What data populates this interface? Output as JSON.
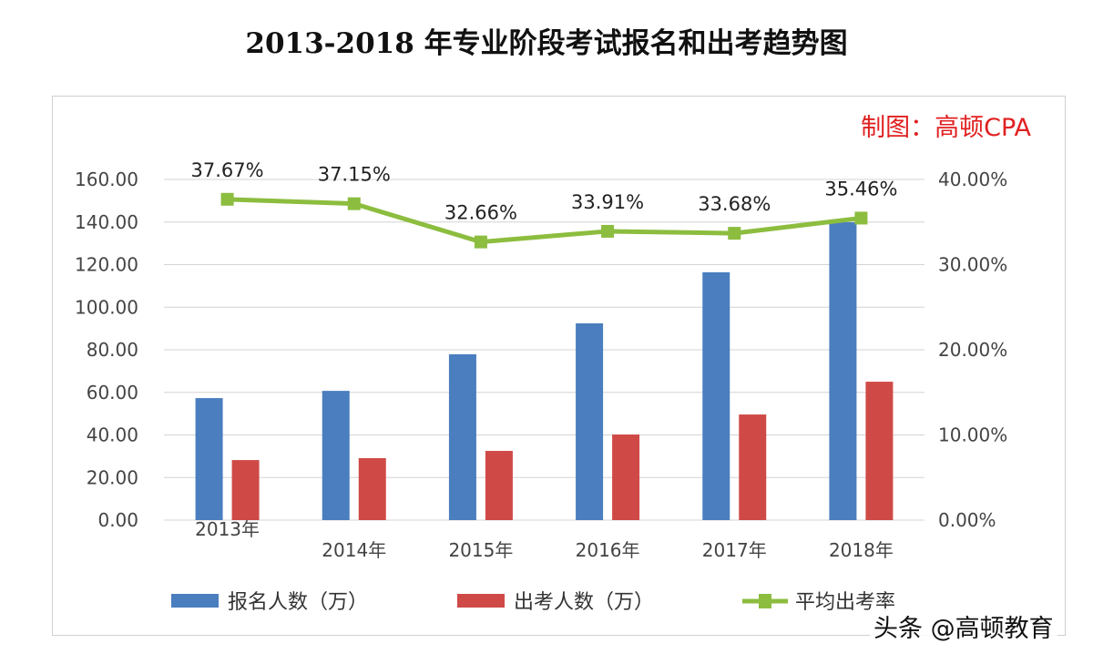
{
  "chart_data": {
    "type": "bar+line",
    "title": "2013-2018 年专业阶段考试报名和出考趋势图",
    "credit": "制图：高顿CPA",
    "categories": [
      "2013年",
      "2014年",
      "2015年",
      "2016年",
      "2017年",
      "2018年"
    ],
    "left_axis": {
      "range": [
        0,
        160
      ],
      "ticks": [
        "0.00",
        "20.00",
        "40.00",
        "60.00",
        "80.00",
        "100.00",
        "120.00",
        "140.00",
        "160.00"
      ]
    },
    "right_axis": {
      "range": [
        0,
        40
      ],
      "ticks": [
        "0.00%",
        "10.00%",
        "20.00%",
        "30.00%",
        "40.00%"
      ]
    },
    "grid": true,
    "legend_position": "bottom",
    "series": [
      {
        "name": "报名人数（万）",
        "type": "bar",
        "axis": "left",
        "color": "#4a7ebf",
        "values": [
          57.3,
          60.7,
          77.9,
          92.4,
          116.4,
          139.9
        ]
      },
      {
        "name": "出考人数（万）",
        "type": "bar",
        "axis": "left",
        "color": "#cf4a47",
        "values": [
          28.2,
          29.1,
          32.5,
          40.2,
          49.6,
          65.0
        ]
      },
      {
        "name": "平均出考率",
        "type": "line",
        "axis": "right",
        "color": "#8cbd3f",
        "values": [
          37.67,
          37.15,
          32.66,
          33.91,
          33.68,
          35.46
        ],
        "labels": [
          "37.67%",
          "37.15%",
          "32.66%",
          "33.91%",
          "33.68%",
          "35.46%"
        ]
      }
    ]
  },
  "watermark": "头条 @高顿教育"
}
